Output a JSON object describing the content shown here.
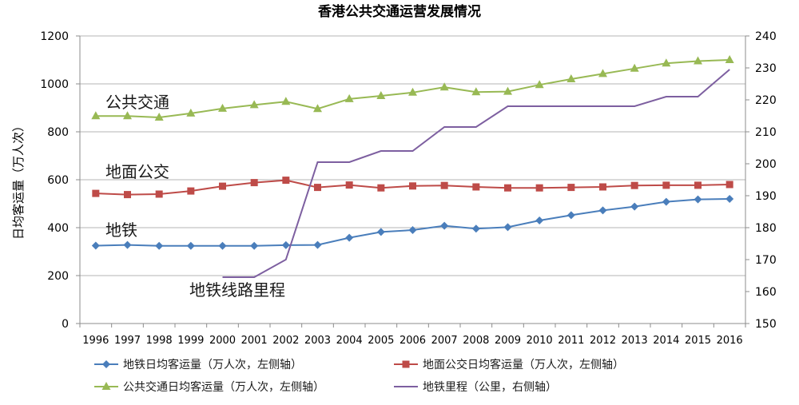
{
  "chart_data": {
    "type": "line",
    "title": "香港公共交通运营发展情况",
    "ylabel": "日均客运量（万人次）",
    "ylim": [
      0,
      1200
    ],
    "yticks": [
      0,
      200,
      400,
      600,
      800,
      1000,
      1200
    ],
    "y2lim": [
      150,
      240
    ],
    "y2ticks": [
      150,
      160,
      170,
      180,
      190,
      200,
      210,
      220,
      230,
      240
    ],
    "categories": [
      "1996",
      "1997",
      "1998",
      "1999",
      "2000",
      "2001",
      "2002",
      "2003",
      "2004",
      "2005",
      "2006",
      "2007",
      "2008",
      "2009",
      "2010",
      "2011",
      "2012",
      "2013",
      "2014",
      "2015",
      "2016"
    ],
    "grid": "horizontal",
    "legend_position": "bottom",
    "series": [
      {
        "name": "地铁日均客运量（万人次，左侧轴）",
        "axis": "left",
        "color": "#4a7ebb",
        "marker": "diamond",
        "values": [
          325,
          328,
          324,
          324,
          324,
          324,
          327,
          328,
          358,
          382,
          390,
          408,
          396,
          402,
          430,
          452,
          472,
          488,
          508,
          518,
          520
        ]
      },
      {
        "name": "地面公交日均客运量（万人次，左侧轴）",
        "axis": "left",
        "color": "#be4b48",
        "marker": "square",
        "values": [
          543,
          538,
          540,
          553,
          573,
          588,
          598,
          568,
          578,
          566,
          574,
          576,
          570,
          566,
          566,
          568,
          570,
          576,
          577,
          577,
          580
        ]
      },
      {
        "name": "公共交通日均客运量（万人次，左侧轴）",
        "axis": "left",
        "color": "#98b954",
        "marker": "triangle",
        "values": [
          866,
          866,
          860,
          877,
          897,
          912,
          926,
          896,
          937,
          950,
          964,
          986,
          966,
          968,
          996,
          1020,
          1042,
          1064,
          1086,
          1095,
          1100
        ]
      },
      {
        "name": "地铁里程（公里，右侧轴）",
        "axis": "right",
        "color": "#7d5fa0",
        "marker": "none",
        "start_index": 4,
        "values": [
          null,
          null,
          null,
          null,
          164.5,
          164.5,
          170,
          200.5,
          200.5,
          204,
          204,
          211.5,
          211.5,
          218,
          218,
          218,
          218,
          218,
          221,
          221,
          229.5
        ]
      }
    ],
    "annotations": [
      {
        "text": "公共交通",
        "series": 2
      },
      {
        "text": "地面公交",
        "series": 1
      },
      {
        "text": "地铁",
        "series": 0
      },
      {
        "text": "地铁线路里程",
        "series": 3
      }
    ]
  }
}
